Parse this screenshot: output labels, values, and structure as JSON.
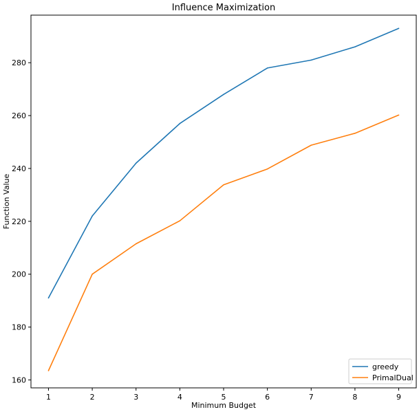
{
  "chart_data": {
    "type": "line",
    "title": "Influence Maximization",
    "xlabel": "Minimum Budget",
    "ylabel": "Function Value",
    "x": [
      1,
      2,
      3,
      4,
      5,
      6,
      7,
      8,
      9
    ],
    "xlim": [
      0.6,
      9.4
    ],
    "ylim": [
      157,
      298
    ],
    "xticks": [
      1,
      2,
      3,
      4,
      5,
      6,
      7,
      8,
      9
    ],
    "yticks": [
      160,
      180,
      200,
      220,
      240,
      260,
      280
    ],
    "grid": false,
    "legend_position": "lower right",
    "series": [
      {
        "name": "greedy",
        "color": "#1f77b4",
        "values": [
          191,
          222,
          242,
          257,
          268,
          278,
          281,
          286,
          293
        ]
      },
      {
        "name": "PrimalDual",
        "color": "#ff7f0e",
        "values": [
          163.5,
          200,
          211.5,
          220.2,
          233.8,
          239.8,
          248.8,
          253.3,
          260.2
        ]
      }
    ]
  }
}
